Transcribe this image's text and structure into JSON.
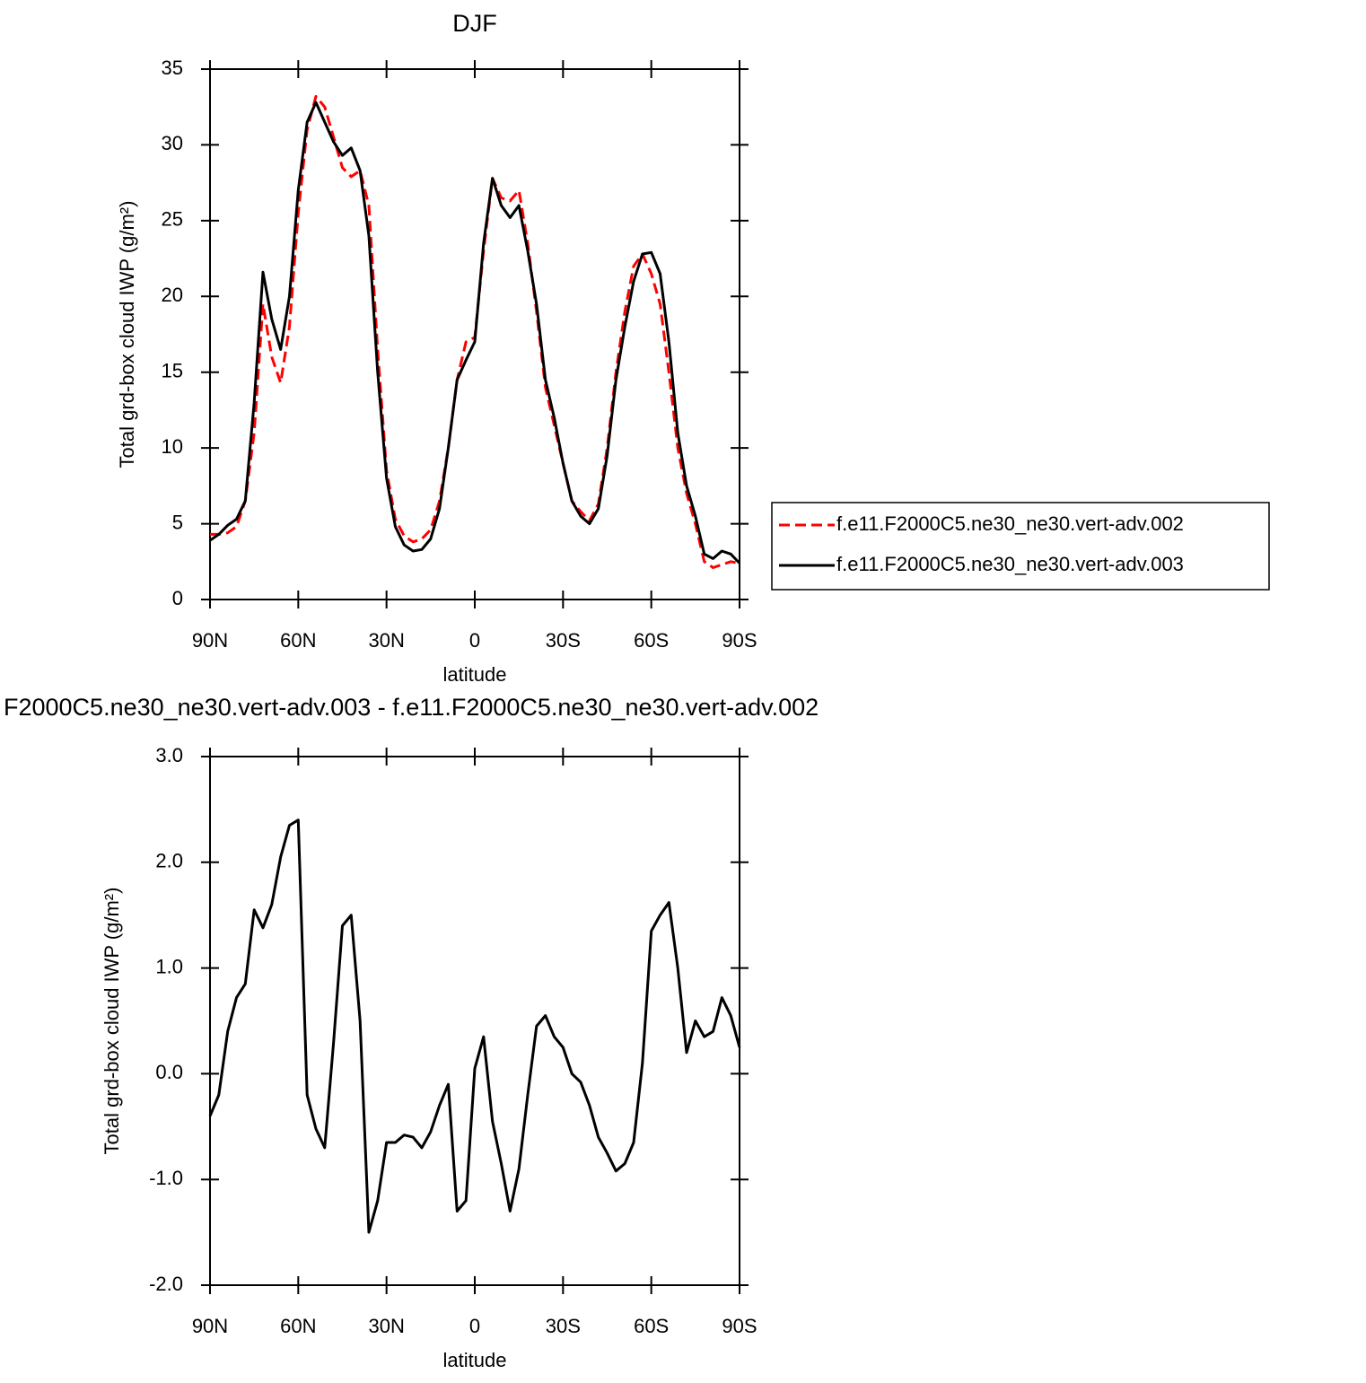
{
  "chart_data": [
    {
      "type": "line",
      "title": "DJF",
      "x_label": "latitude",
      "y_label": "Total grd-box cloud IWP (g/m²)",
      "x": [
        90,
        87,
        84,
        81,
        78,
        75,
        72,
        69,
        66,
        63,
        60,
        57,
        54,
        51,
        48,
        45,
        42,
        39,
        36,
        33,
        30,
        27,
        24,
        21,
        18,
        15,
        12,
        9,
        6,
        3,
        0,
        -3,
        -6,
        -9,
        -12,
        -15,
        -18,
        -21,
        -24,
        -27,
        -30,
        -33,
        -36,
        -39,
        -42,
        -45,
        -48,
        -51,
        -54,
        -57,
        -60,
        -63,
        -66,
        -69,
        -72,
        -75,
        -78,
        -81,
        -84,
        -87,
        -90
      ],
      "series": [
        {
          "name": "f.e11.F2000C5.ne30_ne30.vert-adv.002",
          "color": "#ff0000",
          "style": "dashed",
          "values": [
            4.3,
            4.3,
            4.4,
            4.8,
            6.5,
            11,
            19.5,
            16,
            14.3,
            18,
            25.5,
            31,
            33.2,
            32.5,
            30.5,
            28.5,
            27.9,
            28.3,
            26,
            16.5,
            8.5,
            5.3,
            4.2,
            3.8,
            4,
            4.6,
            6.5,
            10,
            14.5,
            17,
            17.3,
            23,
            27.8,
            26.5,
            26.3,
            27,
            23.5,
            19,
            14,
            11.5,
            9,
            6.5,
            5.8,
            5.2,
            6.3,
            10,
            15,
            19,
            22,
            22.8,
            21.5,
            19.5,
            15,
            10,
            7,
            5,
            2.5,
            2.1,
            2.3,
            2.5,
            2.4
          ]
        },
        {
          "name": "f.e11.F2000C5.ne30_ne30.vert-adv.003",
          "color": "#000000",
          "style": "solid",
          "values": [
            3.9,
            4.3,
            4.9,
            5.3,
            6.5,
            13,
            21.6,
            18.5,
            16.5,
            20,
            27,
            31.5,
            32.8,
            31.5,
            30.2,
            29.3,
            29.8,
            28.3,
            24,
            15,
            8,
            4.8,
            3.6,
            3.2,
            3.3,
            4,
            6,
            10,
            14.5,
            15.8,
            17,
            23.5,
            27.8,
            26,
            25.2,
            26,
            23,
            19.5,
            14.5,
            12,
            9,
            6.5,
            5.5,
            5,
            6,
            9.5,
            14.5,
            18,
            21,
            22.8,
            22.9,
            21.5,
            17,
            11,
            7.5,
            5.5,
            3,
            2.7,
            3.2,
            3,
            2.4
          ]
        }
      ],
      "xlim": [
        90,
        -90
      ],
      "xticks": [
        {
          "value": 90,
          "label": "90N"
        },
        {
          "value": 60,
          "label": "60N"
        },
        {
          "value": 30,
          "label": "30N"
        },
        0,
        {
          "value": -30,
          "label": "30S"
        },
        {
          "value": -60,
          "label": "60S"
        },
        {
          "value": -90,
          "label": "90S"
        }
      ],
      "ylim": [
        0,
        35
      ],
      "yticks": [
        0,
        5,
        10,
        15,
        20,
        25,
        30,
        35
      ],
      "legend": "right"
    },
    {
      "type": "line",
      "title": "F2000C5.ne30_ne30.vert-adv.003 - f.e11.F2000C5.ne30_ne30.vert-adv.002",
      "x_label": "latitude",
      "y_label": "Total grd-box cloud IWP (g/m²)",
      "x": [
        90,
        87,
        84,
        81,
        78,
        75,
        72,
        69,
        66,
        63,
        60,
        57,
        54,
        51,
        48,
        45,
        42,
        39,
        36,
        33,
        30,
        27,
        24,
        21,
        18,
        15,
        12,
        9,
        6,
        3,
        0,
        -3,
        -6,
        -9,
        -12,
        -15,
        -18,
        -21,
        -24,
        -27,
        -30,
        -33,
        -36,
        -39,
        -42,
        -45,
        -48,
        -51,
        -54,
        -57,
        -60,
        -63,
        -66,
        -69,
        -72,
        -75,
        -78,
        -81,
        -84,
        -87,
        -90
      ],
      "series": [
        {
          "name": null,
          "color": "#000000",
          "style": "solid",
          "values": [
            -0.4,
            -0.2,
            0.4,
            0.72,
            0.85,
            1.55,
            1.38,
            1.6,
            2.05,
            2.35,
            2.4,
            -0.2,
            -0.52,
            -0.7,
            0.3,
            1.4,
            1.5,
            0.5,
            -1.5,
            -1.2,
            -0.65,
            -0.65,
            -0.58,
            -0.6,
            -0.7,
            -0.55,
            -0.3,
            -0.1,
            -1.3,
            -1.2,
            0.05,
            0.35,
            -0.45,
            -0.85,
            -1.3,
            -0.9,
            -0.2,
            0.45,
            0.55,
            0.35,
            0.25,
            0,
            -0.08,
            -0.3,
            -0.6,
            -0.75,
            -0.92,
            -0.85,
            -0.65,
            0.1,
            1.35,
            1.5,
            1.62,
            1.0,
            0.2,
            0.5,
            0.35,
            0.4,
            0.72,
            0.55,
            0.25
          ]
        }
      ],
      "xlim": [
        90,
        -90
      ],
      "xticks": [
        {
          "value": 90,
          "label": "90N"
        },
        {
          "value": 60,
          "label": "60N"
        },
        {
          "value": 30,
          "label": "30N"
        },
        0,
        {
          "value": -30,
          "label": "30S"
        },
        {
          "value": -60,
          "label": "60S"
        },
        {
          "value": -90,
          "label": "90S"
        }
      ],
      "ylim": [
        -2,
        3
      ],
      "yticks": [
        {
          "value": -2,
          "label": "-2.0"
        },
        {
          "value": -1,
          "label": "-1.0"
        },
        {
          "value": 0,
          "label": "0.0"
        },
        {
          "value": 1,
          "label": "1.0"
        },
        {
          "value": 2,
          "label": "2.0"
        },
        {
          "value": 3,
          "label": "3.0"
        }
      ]
    }
  ]
}
